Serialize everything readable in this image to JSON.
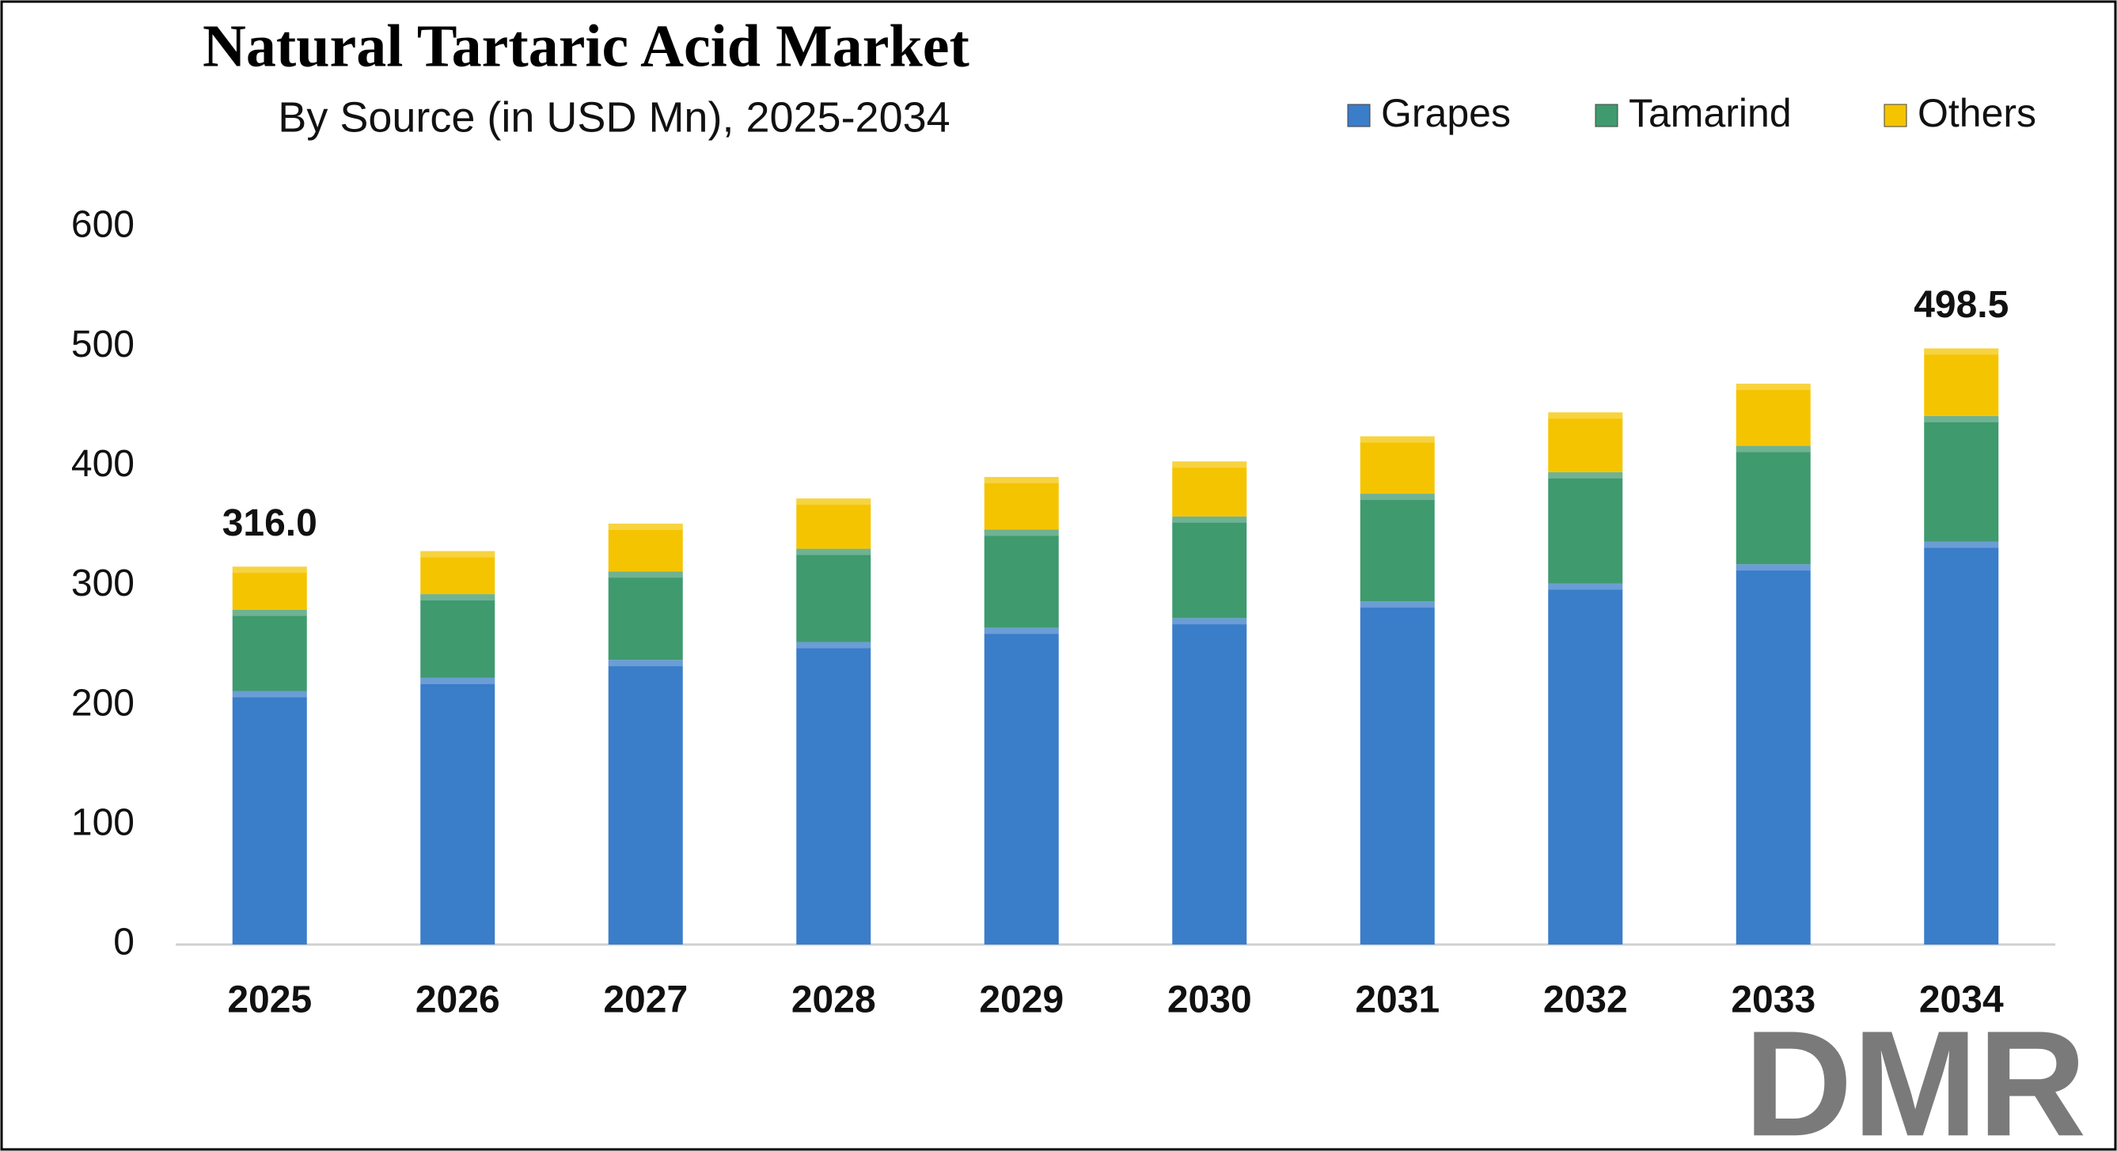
{
  "chart_data": {
    "type": "stacked_bar",
    "title": "Natural Tartaric Acid Market",
    "subtitle": "By Source (in USD Mn), 2025-2034",
    "categories": [
      "2025",
      "2026",
      "2027",
      "2028",
      "2029",
      "2030",
      "2031",
      "2032",
      "2033",
      "2034"
    ],
    "series": [
      {
        "name": "Grapes",
        "color": "#3a7dc9",
        "values": [
          212,
          223,
          238,
          253,
          265,
          273,
          287,
          302,
          318,
          337
        ]
      },
      {
        "name": "Tamarind",
        "color": "#3f9a6e",
        "values": [
          68,
          70,
          74,
          78,
          82,
          85,
          90,
          93,
          99,
          105
        ]
      },
      {
        "name": "Others",
        "color": "#f5c400",
        "values": [
          36,
          36,
          40,
          42,
          44,
          46,
          48,
          50,
          52,
          56.5
        ]
      }
    ],
    "totals": {
      "values": [
        316,
        null,
        null,
        null,
        null,
        null,
        null,
        null,
        null,
        498.5
      ],
      "value_labels": [
        "316.0",
        null,
        null,
        null,
        null,
        null,
        null,
        null,
        null,
        "498.5"
      ]
    },
    "ylim": [
      0,
      600
    ],
    "yticks": [
      0,
      100,
      200,
      300,
      400,
      500,
      600
    ],
    "legend": "top-right",
    "logo": "DMR"
  }
}
